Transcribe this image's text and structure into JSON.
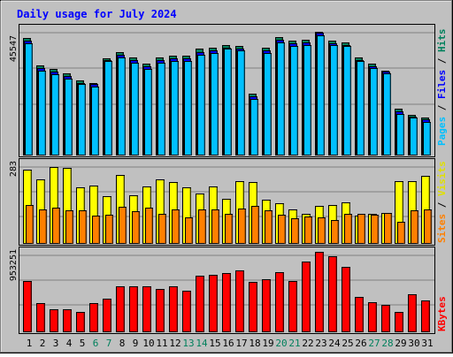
{
  "title": "Daily usage for July 2024",
  "legend": {
    "pages": "Pages",
    "files": "Files",
    "hits": "Hits",
    "sites": "Sites",
    "visits": "Visits",
    "kbytes": "KBytes",
    "sep": " / "
  },
  "axis_max": {
    "hits": "45547",
    "visits": "283",
    "kbytes": "953251"
  },
  "colors": {
    "background": "#c0c0c0",
    "title": "#0000ff",
    "hits": "#00805c",
    "files": "#0000ff",
    "pages": "#00c0ff",
    "visits": "#ffff00",
    "sites": "#ff8000",
    "kbytes": "#ff0000",
    "weekend_label": "#00805c"
  },
  "chart_data": {
    "type": "bar",
    "title": "Daily usage for July 2024",
    "categories": [
      "1",
      "2",
      "3",
      "4",
      "5",
      "6",
      "7",
      "8",
      "9",
      "10",
      "11",
      "12",
      "13",
      "14",
      "15",
      "16",
      "17",
      "18",
      "19",
      "20",
      "21",
      "22",
      "23",
      "24",
      "25",
      "26",
      "27",
      "28",
      "29",
      "30",
      "31"
    ],
    "weekend_days": [
      "6",
      "7",
      "13",
      "14",
      "20",
      "21",
      "27",
      "28"
    ],
    "panels": [
      {
        "name": "requests",
        "ymax": 45547,
        "series": [
          {
            "name": "Hits",
            "values": [
              43500,
              33500,
              32000,
              30500,
              28000,
              27000,
              36000,
              38500,
              36500,
              34000,
              36500,
              37000,
              37000,
              39500,
              40000,
              41000,
              40500,
              23000,
              40000,
              44000,
              42500,
              43000,
              46000,
              42500,
              42000,
              36500,
              34000,
              31500,
              17500,
              15000,
              14000
            ]
          },
          {
            "name": "Files",
            "values": [
              42500,
              32500,
              31000,
              29500,
              27000,
              26500,
              35500,
              37500,
              35500,
              33000,
              35500,
              36000,
              36000,
              38500,
              39000,
              40000,
              39500,
              22000,
              39000,
              43000,
              41500,
              42000,
              45500,
              41500,
              41000,
              35500,
              33000,
              31000,
              16500,
              14500,
              13500
            ]
          },
          {
            "name": "Pages",
            "values": [
              41500,
              31500,
              30000,
              28500,
              26500,
              25500,
              35000,
              36500,
              34500,
              32000,
              34500,
              35000,
              35000,
              37500,
              38000,
              39500,
              39000,
              21000,
              38000,
              42000,
              40500,
              41000,
              44500,
              41000,
              40500,
              35000,
              32500,
              30500,
              15500,
              14000,
              12500
            ]
          }
        ]
      },
      {
        "name": "visitors",
        "ymax": 283,
        "series": [
          {
            "name": "Visits",
            "values": [
              272,
              239,
              283,
              281,
              207,
              214,
              177,
              254,
              179,
              210,
              236,
              228,
              209,
              187,
              210,
              166,
              230,
              229,
              163,
              151,
              126,
              111,
              139,
              144,
              154,
              103,
              110,
              115,
              232,
              231,
              252
            ]
          },
          {
            "name": "Sites",
            "values": [
              143,
              127,
              132,
              124,
              122,
              104,
              106,
              136,
              119,
              134,
              110,
              128,
              96,
              127,
              126,
              112,
              131,
              140,
              123,
              106,
              95,
              100,
              99,
              89,
              111,
              110,
              108,
              114,
              82,
              123,
              128
            ]
          }
        ]
      },
      {
        "name": "kbytes",
        "ymax": 953251,
        "series": [
          {
            "name": "KBytes",
            "values": [
              640000,
              365000,
              290000,
              280000,
              255000,
              360000,
              420000,
              575000,
              575000,
              575000,
              540000,
              575000,
              520000,
              700000,
              710000,
              730000,
              770000,
              630000,
              660000,
              750000,
              640000,
              880000,
              1000000,
              945000,
              810000,
              440000,
              370000,
              340000,
              250000,
              470000,
              395000
            ]
          }
        ]
      }
    ]
  }
}
